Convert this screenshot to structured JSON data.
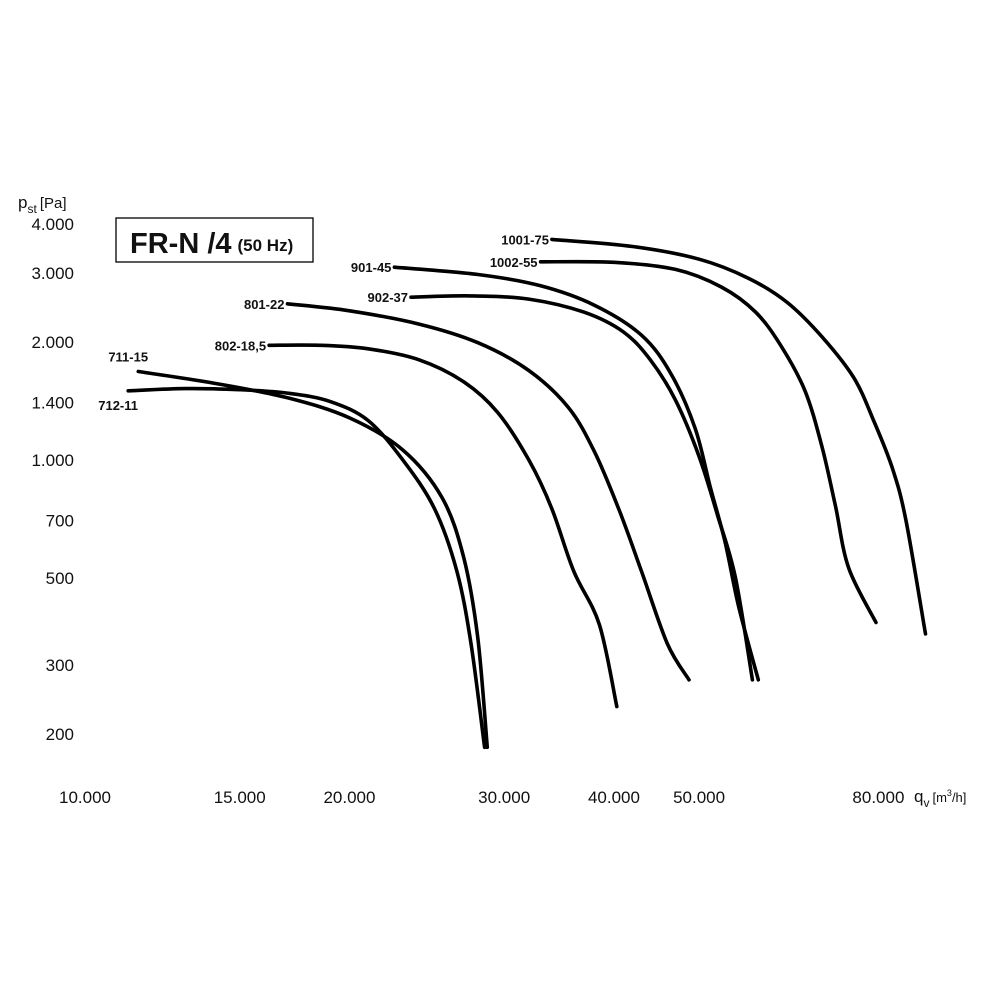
{
  "chart_data": {
    "type": "line",
    "title": "FR-N /4",
    "subtitle": "(50 Hz)",
    "ylabel": {
      "main": "p",
      "sub": "st",
      "unit": "[Pa]"
    },
    "xlabel": {
      "main": "q",
      "sub": "v",
      "unit_pre": "[m",
      "unit_sup": "3",
      "unit_post": "/h]"
    },
    "x_scale": "log",
    "y_scale": "log",
    "xlim": [
      10000,
      95000
    ],
    "ylim": [
      160,
      4600
    ],
    "grid": true,
    "x_ticks": [
      {
        "value": 10000,
        "label": "10.000"
      },
      {
        "value": 15000,
        "label": "15.000"
      },
      {
        "value": 20000,
        "label": "20.000"
      },
      {
        "value": 30000,
        "label": "30.000"
      },
      {
        "value": 40000,
        "label": "40.000"
      },
      {
        "value": 50000,
        "label": "50.000"
      },
      {
        "value": 80000,
        "label": "80.000"
      }
    ],
    "y_ticks": [
      {
        "value": 200,
        "label": "200"
      },
      {
        "value": 300,
        "label": "300"
      },
      {
        "value": 500,
        "label": "500"
      },
      {
        "value": 700,
        "label": "700"
      },
      {
        "value": 1000,
        "label": "1.000"
      },
      {
        "value": 1400,
        "label": "1.400"
      },
      {
        "value": 2000,
        "label": "2.000"
      },
      {
        "value": 3000,
        "label": "3.000"
      },
      {
        "value": 4000,
        "label": "4.000"
      }
    ],
    "series": [
      {
        "name": "711-15",
        "label_side": "above",
        "points": [
          [
            11500,
            1680
          ],
          [
            14000,
            1570
          ],
          [
            17000,
            1440
          ],
          [
            20000,
            1280
          ],
          [
            23000,
            1060
          ],
          [
            25500,
            800
          ],
          [
            27000,
            560
          ],
          [
            28000,
            350
          ],
          [
            28700,
            185
          ]
        ]
      },
      {
        "name": "712-11",
        "label_side": "below",
        "points": [
          [
            11200,
            1500
          ],
          [
            13000,
            1520
          ],
          [
            15000,
            1510
          ],
          [
            17000,
            1480
          ],
          [
            19000,
            1410
          ],
          [
            21000,
            1260
          ],
          [
            23000,
            1000
          ],
          [
            25000,
            750
          ],
          [
            26500,
            520
          ],
          [
            27500,
            340
          ],
          [
            28500,
            185
          ]
        ]
      },
      {
        "name": "802-18,5",
        "label_side": "left",
        "points": [
          [
            16200,
            1960
          ],
          [
            18500,
            1960
          ],
          [
            21000,
            1920
          ],
          [
            24000,
            1800
          ],
          [
            27000,
            1580
          ],
          [
            29500,
            1320
          ],
          [
            32000,
            1000
          ],
          [
            34000,
            750
          ],
          [
            36000,
            520
          ],
          [
            38500,
            380
          ],
          [
            40300,
            235
          ]
        ]
      },
      {
        "name": "801-22",
        "label_side": "left",
        "points": [
          [
            17000,
            2500
          ],
          [
            20000,
            2400
          ],
          [
            24000,
            2220
          ],
          [
            28000,
            1990
          ],
          [
            32000,
            1690
          ],
          [
            35500,
            1360
          ],
          [
            38000,
            1050
          ],
          [
            40500,
            750
          ],
          [
            43000,
            520
          ],
          [
            46000,
            340
          ],
          [
            48700,
            275
          ]
        ]
      },
      {
        "name": "901-45",
        "label_side": "left",
        "points": [
          [
            22500,
            3100
          ],
          [
            28000,
            2970
          ],
          [
            33000,
            2780
          ],
          [
            38000,
            2480
          ],
          [
            43000,
            2080
          ],
          [
            46500,
            1650
          ],
          [
            49500,
            1200
          ],
          [
            51500,
            850
          ],
          [
            53500,
            620
          ],
          [
            55500,
            420
          ],
          [
            58400,
            275
          ]
        ]
      },
      {
        "name": "902-37",
        "label_side": "left",
        "points": [
          [
            23500,
            2600
          ],
          [
            27500,
            2620
          ],
          [
            32000,
            2570
          ],
          [
            37000,
            2380
          ],
          [
            41000,
            2120
          ],
          [
            44000,
            1800
          ],
          [
            47000,
            1420
          ],
          [
            50000,
            1020
          ],
          [
            52500,
            720
          ],
          [
            55000,
            500
          ],
          [
            57500,
            275
          ]
        ]
      },
      {
        "name": "1002-55",
        "label_side": "left",
        "points": [
          [
            33000,
            3200
          ],
          [
            40000,
            3190
          ],
          [
            47000,
            3060
          ],
          [
            53000,
            2760
          ],
          [
            58000,
            2380
          ],
          [
            62000,
            1950
          ],
          [
            66000,
            1500
          ],
          [
            69000,
            1080
          ],
          [
            71500,
            760
          ],
          [
            74000,
            530
          ],
          [
            79500,
            385
          ]
        ]
      },
      {
        "name": "1001-75",
        "label_side": "left",
        "points": [
          [
            34000,
            3650
          ],
          [
            42000,
            3500
          ],
          [
            50000,
            3250
          ],
          [
            57000,
            2900
          ],
          [
            63000,
            2520
          ],
          [
            69000,
            2060
          ],
          [
            75000,
            1620
          ],
          [
            79000,
            1260
          ],
          [
            83000,
            950
          ],
          [
            86000,
            700
          ],
          [
            90500,
            360
          ]
        ]
      }
    ]
  }
}
